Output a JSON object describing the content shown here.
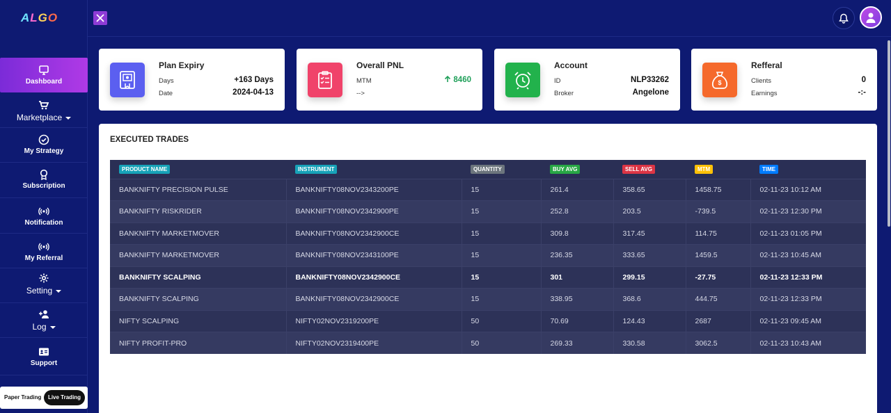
{
  "logo": {
    "text_a": "A",
    "text_l": "L",
    "text_g": "G",
    "text_o": "O"
  },
  "sidebar": {
    "items": [
      {
        "label": "Dashboard",
        "icon": "monitor-icon",
        "active": true
      },
      {
        "label": "Marketplace",
        "icon": "cart-icon",
        "dropdown": true
      },
      {
        "label": "My Strategy",
        "icon": "check-circle-icon"
      },
      {
        "label": "Subscription",
        "icon": "award-icon"
      },
      {
        "label": "Notification",
        "icon": "broadcast-icon"
      },
      {
        "label": "My Referral",
        "icon": "broadcast-icon"
      },
      {
        "label": "Setting",
        "icon": "gear-icon",
        "dropdown": true
      },
      {
        "label": "Log",
        "icon": "user-plus-icon",
        "dropdown": true
      },
      {
        "label": "Support",
        "icon": "id-card-icon"
      }
    ],
    "toggle": {
      "paper": "Paper Trading",
      "live": "Live Trading"
    }
  },
  "cards": {
    "plan": {
      "title": "Plan Expiry",
      "k1": "Days",
      "v1": "+163 Days",
      "k2": "Date",
      "v2": "2024-04-13",
      "color": "#5b5ff0"
    },
    "pnl": {
      "title": "Overall PNL",
      "k1": "MTM",
      "v1": "8460",
      "k2": "-->",
      "v2": "",
      "color": "#f0436a"
    },
    "account": {
      "title": "Account",
      "k1": "ID",
      "v1": "NLP33262",
      "k2": "Broker",
      "v2": "Angelone",
      "color": "#22b24c"
    },
    "referral": {
      "title": "Refferal",
      "k1": "Clients",
      "v1": "0",
      "k2": "Earnings",
      "v2": "-:-",
      "color": "#f5692b"
    }
  },
  "trades": {
    "title": "EXECUTED TRADES",
    "headers": [
      {
        "label": "PRODUCT NAME",
        "color": "#17a2b8"
      },
      {
        "label": "INSTRUMENT",
        "color": "#17a2b8"
      },
      {
        "label": "QUANTITY",
        "color": "#6c757d"
      },
      {
        "label": "BUY AVG",
        "color": "#28a745"
      },
      {
        "label": "SELL AVG",
        "color": "#dc3545"
      },
      {
        "label": "MTM",
        "color": "#ffc107"
      },
      {
        "label": "TIME",
        "color": "#007bff"
      }
    ],
    "rows": [
      [
        "BANKNIFTY PRECISION PULSE",
        "BANKNIFTY08NOV2343200PE",
        "15",
        "261.4",
        "358.65",
        "1458.75",
        "02-11-23 10:12 AM"
      ],
      [
        "BANKNIFTY RISKRIDER",
        "BANKNIFTY08NOV2342900PE",
        "15",
        "252.8",
        "203.5",
        "-739.5",
        "02-11-23 12:30 PM"
      ],
      [
        "BANKNIFTY MARKETMOVER",
        "BANKNIFTY08NOV2342900CE",
        "15",
        "309.8",
        "317.45",
        "114.75",
        "02-11-23 01:05 PM"
      ],
      [
        "BANKNIFTY MARKETMOVER",
        "BANKNIFTY08NOV2343100PE",
        "15",
        "236.35",
        "333.65",
        "1459.5",
        "02-11-23 10:45 AM"
      ],
      [
        "BANKNIFTY SCALPING",
        "BANKNIFTY08NOV2342900CE",
        "15",
        "301",
        "299.15",
        "-27.75",
        "02-11-23 12:33 PM"
      ],
      [
        "BANKNIFTY SCALPING",
        "BANKNIFTY08NOV2342900CE",
        "15",
        "338.95",
        "368.6",
        "444.75",
        "02-11-23 12:33 PM"
      ],
      [
        "NIFTY SCALPING",
        "NIFTY02NOV2319200PE",
        "50",
        "70.69",
        "124.43",
        "2687",
        "02-11-23 09:45 AM"
      ],
      [
        "NIFTY PROFIT-PRO",
        "NIFTY02NOV2319400PE",
        "50",
        "269.33",
        "330.58",
        "3062.5",
        "02-11-23 10:43 AM"
      ]
    ]
  }
}
